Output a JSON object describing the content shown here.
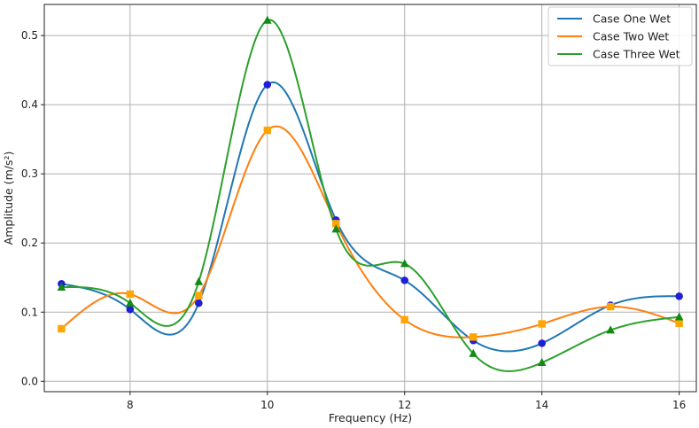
{
  "chart_data": {
    "type": "line",
    "title": "",
    "xlabel": "Frequency (Hz)",
    "ylabel": "Amplitude (m/s²)",
    "xlim": [
      6.75,
      16.25
    ],
    "ylim": [
      -0.015,
      0.545
    ],
    "xticks": [
      8,
      10,
      12,
      14,
      16
    ],
    "yticks": [
      0.0,
      0.1,
      0.2,
      0.3,
      0.4,
      0.5
    ],
    "ytick_labels": [
      "0.0",
      "0.1",
      "0.2",
      "0.3",
      "0.4",
      "0.5"
    ],
    "grid": true,
    "legend_position": "top-right",
    "x": [
      7,
      8,
      9,
      10,
      11,
      12,
      13,
      14,
      15,
      16
    ],
    "series": [
      {
        "name": "Case One Wet",
        "color": "#1f77b4",
        "marker": "circle",
        "marker_color": "#1f1fd6",
        "values": [
          0.141,
          0.104,
          0.113,
          0.429,
          0.233,
          0.146,
          0.059,
          0.055,
          0.11,
          0.123
        ]
      },
      {
        "name": "Case Two Wet",
        "color": "#ff7f0e",
        "marker": "square",
        "marker_color": "#ffa500",
        "values": [
          0.076,
          0.126,
          0.124,
          0.363,
          0.228,
          0.089,
          0.064,
          0.083,
          0.108,
          0.084
        ]
      },
      {
        "name": "Case Three Wet",
        "color": "#2ca02c",
        "marker": "triangle",
        "marker_color": "#138a13",
        "values": [
          0.136,
          0.113,
          0.144,
          0.522,
          0.22,
          0.17,
          0.04,
          0.027,
          0.074,
          0.093
        ]
      }
    ]
  }
}
